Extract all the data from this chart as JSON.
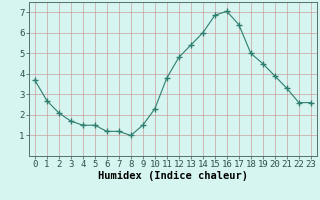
{
  "x": [
    0,
    1,
    2,
    3,
    4,
    5,
    6,
    7,
    8,
    9,
    10,
    11,
    12,
    13,
    14,
    15,
    16,
    17,
    18,
    19,
    20,
    21,
    22,
    23
  ],
  "y": [
    3.7,
    2.7,
    2.1,
    1.7,
    1.5,
    1.5,
    1.2,
    1.2,
    1.0,
    1.5,
    2.3,
    3.8,
    4.8,
    5.4,
    6.0,
    6.85,
    7.05,
    6.4,
    5.0,
    4.5,
    3.9,
    3.3,
    2.6,
    2.6
  ],
  "line_color": "#2e7d6e",
  "marker": "+",
  "marker_size": 4,
  "bg_color": "#d6f5f0",
  "grid_color": "#c8a0a0",
  "xlabel": "Humidex (Indice chaleur)",
  "xlabel_fontsize": 7.5,
  "tick_fontsize": 6.5,
  "xlim": [
    -0.5,
    23.5
  ],
  "ylim": [
    0,
    7.5
  ],
  "yticks": [
    1,
    2,
    3,
    4,
    5,
    6,
    7
  ],
  "xticks": [
    0,
    1,
    2,
    3,
    4,
    5,
    6,
    7,
    8,
    9,
    10,
    11,
    12,
    13,
    14,
    15,
    16,
    17,
    18,
    19,
    20,
    21,
    22,
    23
  ]
}
